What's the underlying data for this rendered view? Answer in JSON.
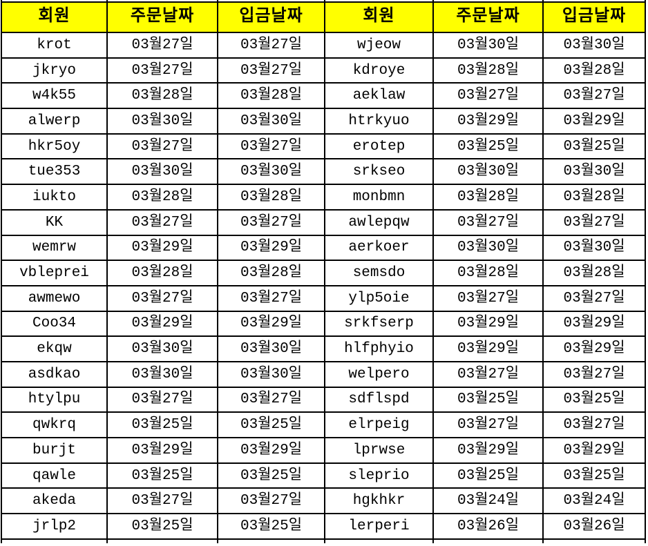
{
  "app": {
    "title": "order-deposit-table"
  },
  "colors": {
    "header_bg": "#FFFF00",
    "text": "#000000",
    "muted_text": "#7F7F7F",
    "border": "#000000",
    "cell_bg": "#FFFFFF"
  },
  "table": {
    "columns": [
      {
        "label": "회원",
        "kind": "member"
      },
      {
        "label": "주문날짜",
        "kind": "order-date"
      },
      {
        "label": "입금날짜",
        "kind": "deposit-date"
      },
      {
        "label": "회원",
        "kind": "member"
      },
      {
        "label": "주문날짜",
        "kind": "order-date"
      },
      {
        "label": "입금날짜",
        "kind": "deposit-date"
      }
    ],
    "rows": [
      {
        "cells": [
          {
            "t": "krot"
          },
          {
            "t": "03월27일"
          },
          {
            "t": "03월27일"
          },
          {
            "t": "wjeow",
            "muted": true
          },
          {
            "t": "03월30일"
          },
          {
            "t": "03월30일"
          }
        ]
      },
      {
        "cells": [
          {
            "t": "jkryo"
          },
          {
            "t": "03월27일"
          },
          {
            "t": "03월27일"
          },
          {
            "t": "kdroye"
          },
          {
            "t": "03월28일"
          },
          {
            "t": "03월28일"
          }
        ]
      },
      {
        "cells": [
          {
            "t": "w4k55"
          },
          {
            "t": "03월28일"
          },
          {
            "t": "03월28일"
          },
          {
            "t": "aeklaw"
          },
          {
            "t": "03월27일"
          },
          {
            "t": "03월27일"
          }
        ]
      },
      {
        "cells": [
          {
            "t": "alwerp"
          },
          {
            "t": "03월30일"
          },
          {
            "t": "03월30일"
          },
          {
            "t": "htrkyuo"
          },
          {
            "t": "03월29일"
          },
          {
            "t": "03월29일"
          }
        ]
      },
      {
        "cells": [
          {
            "t": "hkr5oy"
          },
          {
            "t": "03월27일"
          },
          {
            "t": "03월27일"
          },
          {
            "t": "erotep"
          },
          {
            "t": "03월25일"
          },
          {
            "t": "03월25일"
          }
        ]
      },
      {
        "cells": [
          {
            "t": "tue353"
          },
          {
            "t": "03월30일"
          },
          {
            "t": "03월30일"
          },
          {
            "t": "srkseo",
            "muted": true
          },
          {
            "t": "03월30일"
          },
          {
            "t": "03월30일"
          }
        ]
      },
      {
        "cells": [
          {
            "t": "iukto"
          },
          {
            "t": "03월28일"
          },
          {
            "t": "03월28일"
          },
          {
            "t": "monbmn"
          },
          {
            "t": "03월28일"
          },
          {
            "t": "03월28일"
          }
        ]
      },
      {
        "cells": [
          {
            "t": "KK"
          },
          {
            "t": "03월27일"
          },
          {
            "t": "03월27일"
          },
          {
            "t": "awlepqw",
            "muted": true
          },
          {
            "t": "03월27일"
          },
          {
            "t": "03월27일"
          }
        ]
      },
      {
        "cells": [
          {
            "t": "wemrw"
          },
          {
            "t": "03월29일"
          },
          {
            "t": "03월29일"
          },
          {
            "t": "aerkoer"
          },
          {
            "t": "03월30일"
          },
          {
            "t": "03월30일"
          }
        ]
      },
      {
        "cells": [
          {
            "t": "vbleprei",
            "muted": true
          },
          {
            "t": "03월28일"
          },
          {
            "t": "03월28일"
          },
          {
            "t": "semsdo"
          },
          {
            "t": "03월28일"
          },
          {
            "t": "03월28일"
          }
        ]
      },
      {
        "cells": [
          {
            "t": "awmewo"
          },
          {
            "t": "03월27일"
          },
          {
            "t": "03월27일"
          },
          {
            "t": "ylp5oie"
          },
          {
            "t": "03월27일"
          },
          {
            "t": "03월27일"
          }
        ]
      },
      {
        "cells": [
          {
            "t": "Coo34",
            "muted": true
          },
          {
            "t": "03월29일"
          },
          {
            "t": "03월29일"
          },
          {
            "t": "srkfserp"
          },
          {
            "t": "03월29일"
          },
          {
            "t": "03월29일"
          }
        ]
      },
      {
        "cells": [
          {
            "t": "ekqw",
            "muted": true
          },
          {
            "t": "03월30일"
          },
          {
            "t": "03월30일"
          },
          {
            "t": "hlfphyio"
          },
          {
            "t": "03월29일"
          },
          {
            "t": "03월29일"
          }
        ]
      },
      {
        "cells": [
          {
            "t": "asdkao"
          },
          {
            "t": "03월30일"
          },
          {
            "t": "03월30일"
          },
          {
            "t": "welpero",
            "muted": true
          },
          {
            "t": "03월27일"
          },
          {
            "t": "03월27일"
          }
        ]
      },
      {
        "cells": [
          {
            "t": "htylpu",
            "muted": true
          },
          {
            "t": "03월27일"
          },
          {
            "t": "03월27일"
          },
          {
            "t": "sdflspd"
          },
          {
            "t": "03월25일"
          },
          {
            "t": "03월25일"
          }
        ]
      },
      {
        "cells": [
          {
            "t": "qwkrq"
          },
          {
            "t": "03월25일"
          },
          {
            "t": "03월25일"
          },
          {
            "t": "elrpeig"
          },
          {
            "t": "03월27일"
          },
          {
            "t": "03월27일"
          }
        ]
      },
      {
        "cells": [
          {
            "t": "burjt",
            "muted": true
          },
          {
            "t": "03월29일"
          },
          {
            "t": "03월29일"
          },
          {
            "t": "lprwse"
          },
          {
            "t": "03월29일"
          },
          {
            "t": "03월29일"
          }
        ]
      },
      {
        "cells": [
          {
            "t": "qawle"
          },
          {
            "t": "03월25일"
          },
          {
            "t": "03월25일"
          },
          {
            "t": "sleprio"
          },
          {
            "t": "03월25일"
          },
          {
            "t": "03월25일"
          }
        ]
      },
      {
        "cells": [
          {
            "t": "akeda",
            "muted": true
          },
          {
            "t": "03월27일"
          },
          {
            "t": "03월27일"
          },
          {
            "t": "hgkhkr"
          },
          {
            "t": "03월24일"
          },
          {
            "t": "03월24일"
          }
        ]
      },
      {
        "cells": [
          {
            "t": "jrlp2",
            "muted": true
          },
          {
            "t": "03월25일"
          },
          {
            "t": "03월25일"
          },
          {
            "t": "lerperi"
          },
          {
            "t": "03월26일"
          },
          {
            "t": "03월26일"
          }
        ]
      }
    ]
  }
}
